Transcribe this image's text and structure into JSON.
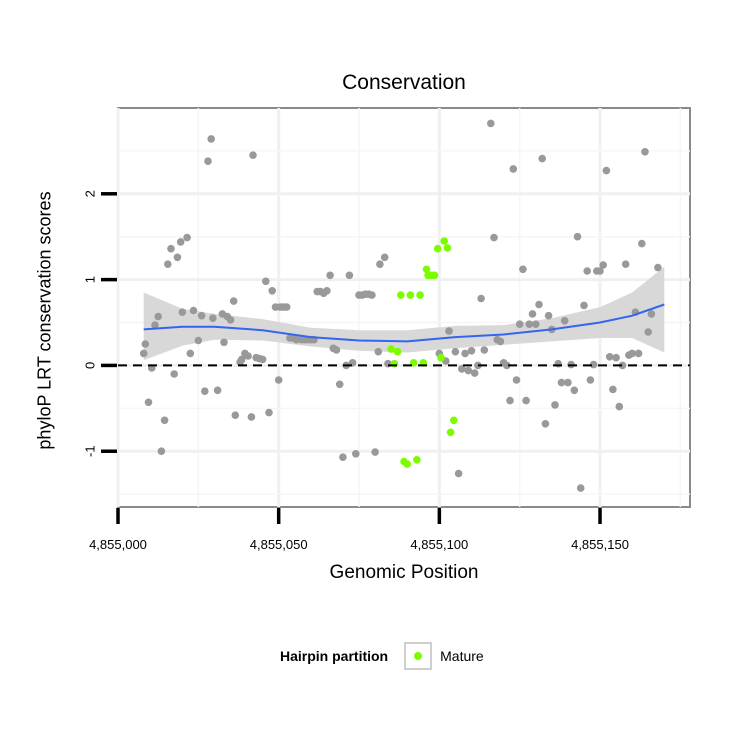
{
  "chart_data": {
    "type": "scatter",
    "title": "Conservation",
    "xlabel": "Genomic Position",
    "ylabel": "phyloP LRT conservation scores",
    "xlim": [
      4855000,
      4855178
    ],
    "ylim": [
      -1.65,
      3.0
    ],
    "x_ticks": [
      4855000,
      4855050,
      4855100,
      4855150
    ],
    "x_tick_labels": [
      "4,855,000",
      "4,855,050",
      "4,855,100",
      "4,855,150"
    ],
    "y_ticks": [
      -1,
      0,
      1,
      2
    ],
    "y_tick_labels": [
      "-1",
      "0",
      "1",
      "2"
    ],
    "reference_line": {
      "y": 0,
      "style": "dashed"
    },
    "legend": {
      "title": "Hairpin partition",
      "entries": [
        {
          "label": "Mature",
          "color": "#7CFC00"
        }
      ],
      "position": "bottom"
    },
    "colors": {
      "other": "#999999",
      "mature": "#7CFC00",
      "smooth": "#3366ee",
      "band": "#d4d4d4",
      "panel": "#ffffff",
      "grid": "#f0f0f0"
    },
    "series": [
      {
        "name": "Other",
        "color": "#999999",
        "points": [
          [
            4855008,
            0.14
          ],
          [
            4855008.5,
            0.25
          ],
          [
            4855009.5,
            -0.43
          ],
          [
            4855010.5,
            -0.03
          ],
          [
            4855011.5,
            0.47
          ],
          [
            4855012.5,
            0.57
          ],
          [
            4855013.5,
            -1.0
          ],
          [
            4855014.5,
            -0.64
          ],
          [
            4855015.5,
            1.18
          ],
          [
            4855016.5,
            1.36
          ],
          [
            4855017.5,
            -0.1
          ],
          [
            4855018.5,
            1.26
          ],
          [
            4855019.5,
            1.44
          ],
          [
            4855020,
            0.62
          ],
          [
            4855021.5,
            1.49
          ],
          [
            4855022.5,
            0.14
          ],
          [
            4855023.5,
            0.64
          ],
          [
            4855025,
            0.29
          ],
          [
            4855026,
            0.58
          ],
          [
            4855027,
            -0.3
          ],
          [
            4855028,
            2.38
          ],
          [
            4855029,
            2.64
          ],
          [
            4855029.5,
            0.55
          ],
          [
            4855031,
            -0.29
          ],
          [
            4855032.5,
            0.6
          ],
          [
            4855033,
            0.27
          ],
          [
            4855034,
            0.57
          ],
          [
            4855035,
            0.53
          ],
          [
            4855036,
            0.75
          ],
          [
            4855036.5,
            -0.58
          ],
          [
            4855038,
            0.04
          ],
          [
            4855038.5,
            0.07
          ],
          [
            4855039.5,
            0.14
          ],
          [
            4855040.5,
            0.11
          ],
          [
            4855041.5,
            -0.6
          ],
          [
            4855042,
            2.45
          ],
          [
            4855043,
            0.09
          ],
          [
            4855044,
            0.08
          ],
          [
            4855045,
            0.07
          ],
          [
            4855046,
            0.98
          ],
          [
            4855047,
            -0.55
          ],
          [
            4855048,
            0.87
          ],
          [
            4855049,
            0.68
          ],
          [
            4855050,
            -0.17
          ],
          [
            4855050.5,
            0.68
          ],
          [
            4855051.5,
            0.68
          ],
          [
            4855052.5,
            0.68
          ],
          [
            4855053.5,
            0.32
          ],
          [
            4855054.5,
            0.32
          ],
          [
            4855055.5,
            0.3
          ],
          [
            4855057,
            0.3
          ],
          [
            4855058,
            0.3
          ],
          [
            4855059,
            0.3
          ],
          [
            4855060,
            0.3
          ],
          [
            4855061,
            0.3
          ],
          [
            4855062,
            0.86
          ],
          [
            4855063,
            0.86
          ],
          [
            4855064,
            0.84
          ],
          [
            4855065,
            0.87
          ],
          [
            4855066,
            1.05
          ],
          [
            4855067,
            0.2
          ],
          [
            4855068,
            0.18
          ],
          [
            4855069,
            -0.22
          ],
          [
            4855070,
            -1.07
          ],
          [
            4855071,
            0.0
          ],
          [
            4855072,
            1.05
          ],
          [
            4855073,
            0.03
          ],
          [
            4855074,
            -1.03
          ],
          [
            4855075,
            0.82
          ],
          [
            4855076,
            0.82
          ],
          [
            4855077,
            0.83
          ],
          [
            4855078,
            0.83
          ],
          [
            4855079,
            0.82
          ],
          [
            4855080,
            -1.01
          ],
          [
            4855081,
            0.16
          ],
          [
            4855081.5,
            1.18
          ],
          [
            4855083,
            1.26
          ],
          [
            4855084,
            0.02
          ],
          [
            4855110,
            0.17
          ],
          [
            4855111,
            -0.09
          ],
          [
            4855112,
            0.0
          ],
          [
            4855113,
            0.78
          ],
          [
            4855114,
            0.18
          ],
          [
            4855116,
            2.82
          ],
          [
            4855117,
            1.49
          ],
          [
            4855118,
            0.3
          ],
          [
            4855119,
            0.28
          ],
          [
            4855120,
            0.03
          ],
          [
            4855121,
            0.0
          ],
          [
            4855122,
            -0.41
          ],
          [
            4855123,
            2.29
          ],
          [
            4855124,
            -0.17
          ],
          [
            4855125,
            0.48
          ],
          [
            4855126,
            1.12
          ],
          [
            4855127,
            -0.41
          ],
          [
            4855128,
            0.48
          ],
          [
            4855129,
            0.6
          ],
          [
            4855130,
            0.48
          ],
          [
            4855131,
            0.71
          ],
          [
            4855132,
            2.41
          ],
          [
            4855133,
            -0.68
          ],
          [
            4855134,
            0.58
          ],
          [
            4855135,
            0.42
          ],
          [
            4855136,
            -0.46
          ],
          [
            4855137,
            0.02
          ],
          [
            4855138,
            -0.2
          ],
          [
            4855139,
            0.52
          ],
          [
            4855140,
            -0.2
          ],
          [
            4855141,
            0.01
          ],
          [
            4855142,
            -0.29
          ],
          [
            4855143,
            1.5
          ],
          [
            4855144,
            -1.43
          ],
          [
            4855145,
            0.7
          ],
          [
            4855146,
            1.1
          ],
          [
            4855147,
            -0.17
          ],
          [
            4855148,
            0.01
          ],
          [
            4855149,
            1.1
          ],
          [
            4855150,
            1.1
          ],
          [
            4855151,
            1.17
          ],
          [
            4855152,
            2.27
          ],
          [
            4855153,
            0.1
          ],
          [
            4855154,
            -0.28
          ],
          [
            4855155,
            0.09
          ],
          [
            4855156,
            -0.48
          ],
          [
            4855157,
            0.0
          ],
          [
            4855158,
            1.18
          ],
          [
            4855159,
            0.12
          ],
          [
            4855160,
            0.14
          ],
          [
            4855161,
            0.62
          ],
          [
            4855162,
            0.14
          ],
          [
            4855163,
            1.42
          ],
          [
            4855164,
            2.49
          ],
          [
            4855165,
            0.39
          ],
          [
            4855166,
            0.6
          ],
          [
            4855168,
            1.14
          ],
          [
            4855100,
            0.14
          ],
          [
            4855102,
            0.05
          ],
          [
            4855105,
            0.16
          ],
          [
            4855106,
            -1.26
          ],
          [
            4855107,
            -0.04
          ],
          [
            4855108,
            0.14
          ],
          [
            4855109,
            -0.06
          ],
          [
            4855103,
            0.4
          ]
        ]
      },
      {
        "name": "Mature",
        "color": "#7CFC00",
        "points": [
          [
            4855085,
            0.19
          ],
          [
            4855086,
            0.02
          ],
          [
            4855087,
            0.16
          ],
          [
            4855088,
            0.82
          ],
          [
            4855089,
            -1.12
          ],
          [
            4855090,
            -1.15
          ],
          [
            4855091,
            0.82
          ],
          [
            4855092,
            0.03
          ],
          [
            4855093,
            -1.1
          ],
          [
            4855094,
            0.82
          ],
          [
            4855095,
            0.03
          ],
          [
            4855096,
            1.12
          ],
          [
            4855096.5,
            1.05
          ],
          [
            4855097.5,
            1.05
          ],
          [
            4855098.5,
            1.05
          ],
          [
            4855099.5,
            1.36
          ],
          [
            4855100.5,
            0.09
          ],
          [
            4855101.5,
            1.45
          ],
          [
            4855102.5,
            1.37
          ],
          [
            4855103.5,
            -0.78
          ],
          [
            4855104.5,
            -0.64
          ]
        ]
      }
    ],
    "smooth": {
      "x": [
        4855008,
        4855020,
        4855030,
        4855045,
        4855060,
        4855075,
        4855090,
        4855105,
        4855120,
        4855135,
        4855150,
        4855160,
        4855170
      ],
      "y": [
        0.42,
        0.45,
        0.45,
        0.41,
        0.33,
        0.29,
        0.28,
        0.33,
        0.36,
        0.42,
        0.5,
        0.58,
        0.71
      ],
      "lower": [
        0.06,
        0.23,
        0.3,
        0.29,
        0.22,
        0.17,
        0.15,
        0.2,
        0.24,
        0.28,
        0.32,
        0.32,
        0.15
      ],
      "upper": [
        0.85,
        0.66,
        0.6,
        0.54,
        0.44,
        0.41,
        0.41,
        0.46,
        0.47,
        0.55,
        0.68,
        0.85,
        1.15
      ]
    }
  }
}
